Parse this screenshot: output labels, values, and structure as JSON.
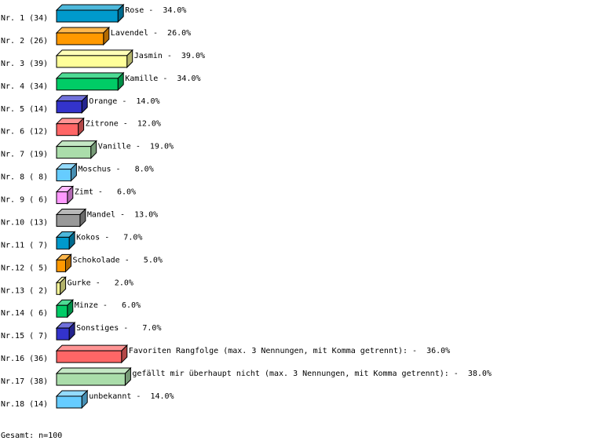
{
  "chart_data": {
    "type": "bar",
    "orientation": "horizontal",
    "style": "3d",
    "row_labels": [
      "Nr. 1 (34)",
      "Nr. 2 (26)",
      "Nr. 3 (39)",
      "Nr. 4 (34)",
      "Nr. 5 (14)",
      "Nr. 6 (12)",
      "Nr. 7 (19)",
      "Nr. 8 ( 8)",
      "Nr. 9 ( 6)",
      "Nr.10 (13)",
      "Nr.11 ( 7)",
      "Nr.12 ( 5)",
      "Nr.13 ( 2)",
      "Nr.14 ( 6)",
      "Nr.15 ( 7)",
      "Nr.16 (36)",
      "Nr.17 (38)",
      "Nr.18 (14)"
    ],
    "bar_labels": [
      "Rose -  34.0%",
      "Lavendel -  26.0%",
      "Jasmin -  39.0%",
      "Kamille -  34.0%",
      "Orange -  14.0%",
      "Zitrone -  12.0%",
      "Vanille -  19.0%",
      "Moschus -   8.0%",
      "Zimt -   6.0%",
      "Mandel -  13.0%",
      "Kokos -   7.0%",
      "Schokolade -   5.0%",
      "Gurke -   2.0%",
      "Minze -   6.0%",
      "Sonstiges -   7.0%",
      "Favoriten Rangfolge (max. 3 Nennungen, mit Komma getrennt): -  36.0%",
      "gefällt mir überhaupt nicht (max. 3 Nennungen, mit Komma getrennt): -  38.0%",
      "unbekannt -  14.0%"
    ],
    "values": [
      34,
      26,
      39,
      34,
      14,
      12,
      19,
      8,
      6,
      13,
      7,
      5,
      2,
      6,
      7,
      36,
      38,
      14
    ],
    "colors": [
      "#0099cc",
      "#ff9900",
      "#ffff99",
      "#00cc66",
      "#3333cc",
      "#ff6666",
      "#aaddaa",
      "#66ccff",
      "#ff99ff",
      "#999999",
      "#0099cc",
      "#ff9900",
      "#ffff99",
      "#00cc66",
      "#3333cc",
      "#ff6666",
      "#aaddaa",
      "#66ccff"
    ],
    "footer": "Gesamt: n=100"
  }
}
